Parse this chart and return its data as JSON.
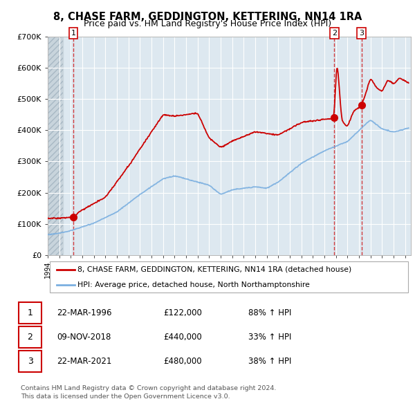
{
  "title": "8, CHASE FARM, GEDDINGTON, KETTERING, NN14 1RA",
  "subtitle": "Price paid vs. HM Land Registry's House Price Index (HPI)",
  "legend_line1": "8, CHASE FARM, GEDDINGTON, KETTERING, NN14 1RA (detached house)",
  "legend_line2": "HPI: Average price, detached house, North Northamptonshire",
  "footnote1": "Contains HM Land Registry data © Crown copyright and database right 2024.",
  "footnote2": "This data is licensed under the Open Government Licence v3.0.",
  "transactions": [
    {
      "num": "1",
      "date": "22-MAR-1996",
      "price": "£122,000",
      "year": 1996.22,
      "price_val": 122000,
      "pct": "88% ↑ HPI"
    },
    {
      "num": "2",
      "date": "09-NOV-2018",
      "price": "£440,000",
      "year": 2018.86,
      "price_val": 440000,
      "pct": "33% ↑ HPI"
    },
    {
      "num": "3",
      "date": "22-MAR-2021",
      "price": "£480,000",
      "year": 2021.22,
      "price_val": 480000,
      "pct": "38% ↑ HPI"
    }
  ],
  "red_line_color": "#cc0000",
  "blue_line_color": "#7aafe0",
  "marker_color": "#cc0000",
  "dashed_color": "#cc0000",
  "background_plot": "#dde8f0",
  "ylim": [
    0,
    700000
  ],
  "xlim_start": 1994,
  "xlim_end": 2025.5,
  "hatch_end": 1995.3
}
